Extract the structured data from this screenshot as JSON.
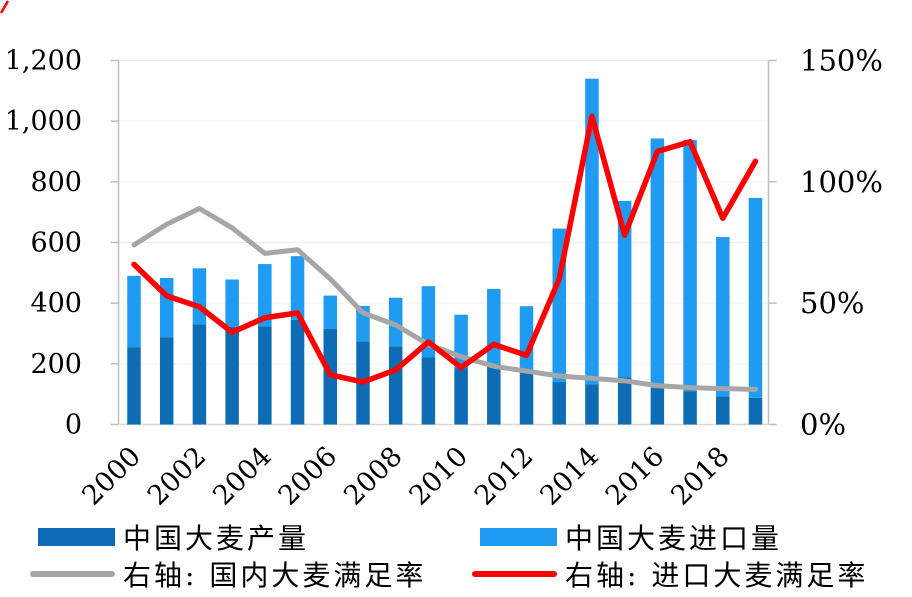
{
  "chart_data": {
    "type": "bar",
    "subtype": "stacked bars with two lines on secondary axis",
    "x": [
      2000,
      2001,
      2002,
      2003,
      2004,
      2005,
      2006,
      2007,
      2008,
      2009,
      2010,
      2011,
      2012,
      2013,
      2014,
      2015,
      2016,
      2017,
      2018,
      2019
    ],
    "series": [
      {
        "name": "中国大麦产量",
        "render": "bar-stack-bottom",
        "axis": "left",
        "color": "#0E6CB5",
        "values": [
          255,
          287,
          330,
          322,
          324,
          345,
          316,
          274,
          258,
          221,
          186,
          200,
          179,
          140,
          133,
          155,
          120,
          110,
          93,
          88
        ]
      },
      {
        "name": "中国大麦进口量",
        "render": "bar-stack-top",
        "axis": "left",
        "color": "#1F9BF2",
        "values": [
          235,
          196,
          185,
          156,
          205,
          210,
          109,
          117,
          160,
          235,
          176,
          247,
          211,
          506,
          1007,
          582,
          823,
          828,
          525,
          659
        ]
      },
      {
        "name": "右轴: 国内大麦满足率",
        "render": "line",
        "axis": "right",
        "color": "#A6A6A6",
        "unit": "%",
        "values": [
          74,
          82.5,
          89,
          81,
          70.5,
          72,
          60,
          46,
          41,
          33,
          28,
          24,
          22,
          20,
          19,
          18,
          16,
          15.2,
          14.8,
          14.5
        ]
      },
      {
        "name": "右轴: 进口大麦满足率",
        "render": "line",
        "axis": "right",
        "color": "#FF0000",
        "unit": "%",
        "values": [
          66,
          53,
          48.5,
          38,
          44,
          46,
          20.5,
          17.5,
          22.5,
          34,
          23.5,
          33,
          28.5,
          60,
          127,
          78,
          112.5,
          116.5,
          85,
          108.5
        ]
      }
    ],
    "left_axis": {
      "min": 0,
      "max": 1200,
      "tick_step": 200,
      "tick_labels": [
        "0",
        "200",
        "400",
        "600",
        "800",
        "1,000",
        "1,200"
      ]
    },
    "right_axis": {
      "min": 0,
      "max": 150,
      "tick_step": 50,
      "tick_labels": [
        "0%",
        "50%",
        "100%",
        "150%"
      ]
    },
    "x_axis": {
      "tick_labels": [
        "2000",
        "2002",
        "2004",
        "2006",
        "2008",
        "2010",
        "2012",
        "2014",
        "2016",
        "2018"
      ],
      "label_rotation_deg": -45
    },
    "grid": "faint horizontal gridlines every 200",
    "legend_position": "bottom, two columns, two rows",
    "title": ""
  },
  "legend": {
    "production": "中国大麦产量",
    "imports": "中国大麦进口量",
    "domestic_rate": "右轴: 国内大麦满足率",
    "import_rate": "右轴: 进口大麦满足率"
  },
  "colors": {
    "production": "#0E6CB5",
    "imports": "#1F9BF2",
    "domestic_rate": "#A6A6A6",
    "import_rate": "#FF0000",
    "axis_line": "#BFBFBF",
    "gridline": "#EFEFEF",
    "text": "#000000"
  }
}
